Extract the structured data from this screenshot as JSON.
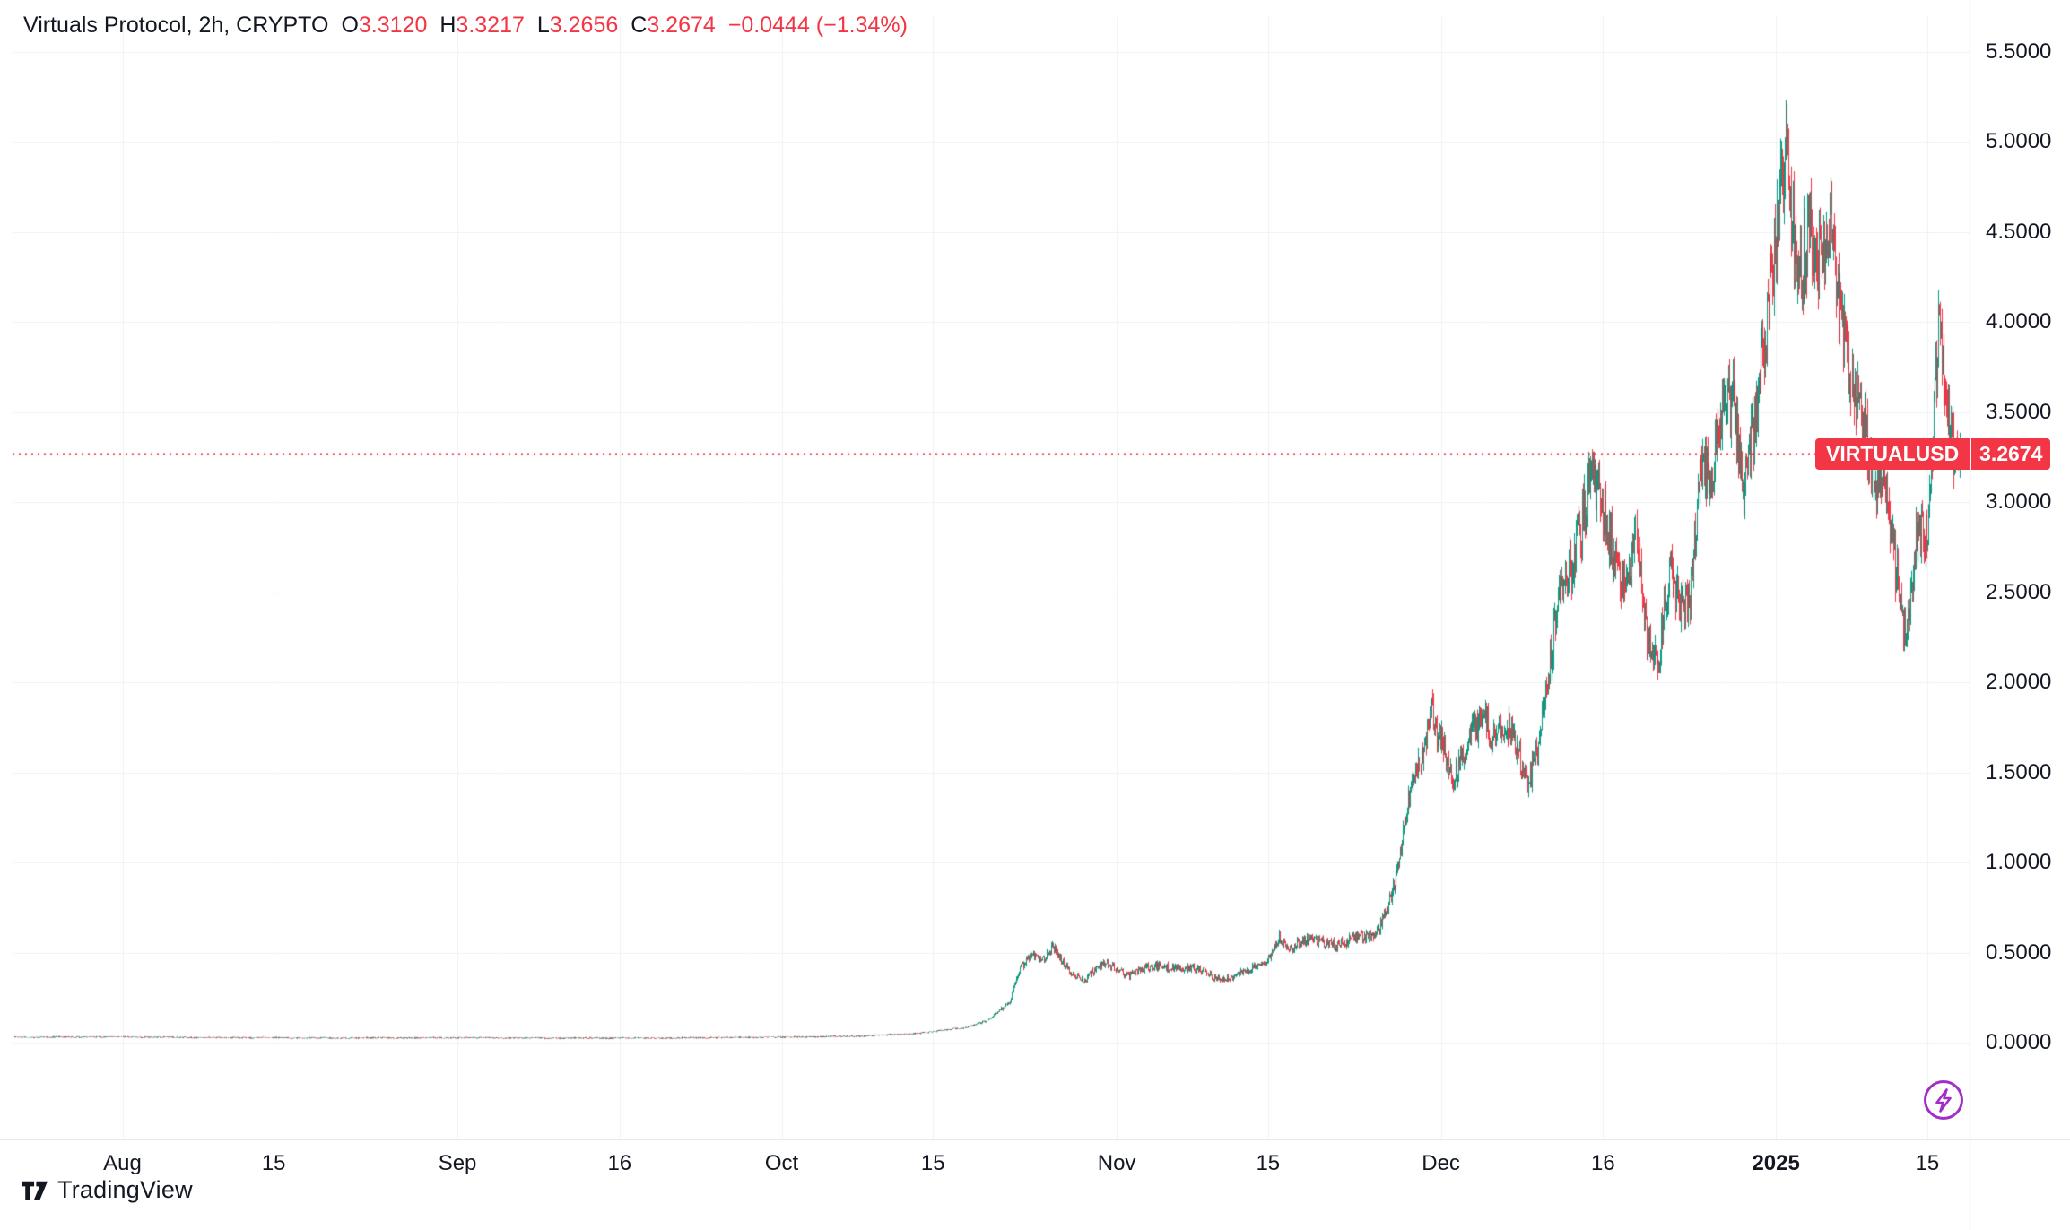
{
  "legend": {
    "title": "Virtuals Protocol, 2h, CRYPTO",
    "ohlc": {
      "o_label": "O",
      "o": "3.3120",
      "h_label": "H",
      "h": "3.3217",
      "l_label": "L",
      "l": "3.2656",
      "c_label": "C",
      "c": "3.2674",
      "change": "−0.0444 (−1.34%)"
    }
  },
  "price_line": {
    "symbol": "VIRTUALUSD",
    "price": "3.2674"
  },
  "footer": {
    "brand": "TradingView"
  },
  "colors": {
    "up": "#089981",
    "down": "#f23645",
    "accent_red": "#f23645",
    "purple": "#a22ec9",
    "text": "#131722",
    "grid": "#eef1f6",
    "axis_line": "#e0e3eb",
    "badge_text": "#ffffff"
  },
  "chart_data": {
    "type": "candlestick",
    "symbol": "VIRTUALUSD",
    "name": "Virtuals Protocol",
    "interval": "2h",
    "exchange": "CRYPTO",
    "open": 3.312,
    "high": 3.3217,
    "low": 3.2656,
    "close": 3.2674,
    "change": -0.0444,
    "change_pct": -1.34,
    "last_price": 3.2674,
    "ylim": [
      0,
      5.5
    ],
    "y_step": 0.5,
    "grid": true,
    "y_ticks": [
      "5.5000",
      "5.0000",
      "4.5000",
      "4.0000",
      "3.5000",
      "3.0000",
      "2.5000",
      "2.0000",
      "1.5000",
      "1.0000",
      "0.5000",
      "0.0000"
    ],
    "x_ticks": [
      {
        "label": "Aug",
        "date": "Aug 1"
      },
      {
        "label": "15",
        "date": "Aug 15"
      },
      {
        "label": "Sep",
        "date": "Sep 1"
      },
      {
        "label": "16",
        "date": "Sep 16"
      },
      {
        "label": "Oct",
        "date": "Oct 1"
      },
      {
        "label": "15",
        "date": "Oct 15"
      },
      {
        "label": "Nov",
        "date": "Nov 1"
      },
      {
        "label": "15",
        "date": "Nov 15"
      },
      {
        "label": "Dec",
        "date": "Dec 1"
      },
      {
        "label": "16",
        "date": "Dec 16"
      },
      {
        "label": "2025",
        "date": "Jan 1",
        "bold": true
      },
      {
        "label": "15",
        "date": "Jan 15"
      }
    ],
    "series_sampling": "approximate daily closes read from the chart",
    "series": [
      [
        "Jul 22",
        0.03
      ],
      [
        "Aug 1",
        0.032
      ],
      [
        "Aug 10",
        0.028
      ],
      [
        "Aug 20",
        0.026
      ],
      [
        "Sep 1",
        0.027
      ],
      [
        "Sep 10",
        0.025
      ],
      [
        "Sep 20",
        0.026
      ],
      [
        "Oct 1",
        0.03
      ],
      [
        "Oct 8",
        0.036
      ],
      [
        "Oct 12",
        0.046
      ],
      [
        "Oct 15",
        0.06
      ],
      [
        "Oct 18",
        0.085
      ],
      [
        "Oct 20",
        0.12
      ],
      [
        "Oct 22",
        0.22
      ],
      [
        "Oct 23",
        0.42
      ],
      [
        "Oct 24",
        0.5
      ],
      [
        "Oct 25",
        0.44
      ],
      [
        "Oct 26",
        0.52
      ],
      [
        "Oct 27",
        0.45
      ],
      [
        "Oct 28",
        0.38
      ],
      [
        "Oct 29",
        0.35
      ],
      [
        "Oct 31",
        0.44
      ],
      [
        "Nov 2",
        0.38
      ],
      [
        "Nov 4",
        0.41
      ],
      [
        "Nov 6",
        0.43
      ],
      [
        "Nov 8",
        0.41
      ],
      [
        "Nov 10",
        0.36
      ],
      [
        "Nov 12",
        0.38
      ],
      [
        "Nov 14",
        0.41
      ],
      [
        "Nov 15",
        0.47
      ],
      [
        "Nov 16",
        0.6
      ],
      [
        "Nov 17",
        0.52
      ],
      [
        "Nov 18",
        0.55
      ],
      [
        "Nov 20",
        0.57
      ],
      [
        "Nov 22",
        0.55
      ],
      [
        "Nov 24",
        0.58
      ],
      [
        "Nov 25",
        0.62
      ],
      [
        "Nov 26",
        0.75
      ],
      [
        "Nov 27",
        0.95
      ],
      [
        "Nov 28",
        1.3
      ],
      [
        "Nov 29",
        1.55
      ],
      [
        "Nov 30",
        1.9
      ],
      [
        "Dec 1",
        1.7
      ],
      [
        "Dec 2",
        1.4
      ],
      [
        "Dec 3",
        1.55
      ],
      [
        "Dec 4",
        1.75
      ],
      [
        "Dec 5",
        1.85
      ],
      [
        "Dec 6",
        1.7
      ],
      [
        "Dec 7",
        1.75
      ],
      [
        "Dec 8",
        1.6
      ],
      [
        "Dec 9",
        1.45
      ],
      [
        "Dec 10",
        1.7
      ],
      [
        "Dec 11",
        2.1
      ],
      [
        "Dec 12",
        2.45
      ],
      [
        "Dec 13",
        2.6
      ],
      [
        "Dec 14",
        2.9
      ],
      [
        "Dec 15",
        3.25
      ],
      [
        "Dec 16",
        2.95
      ],
      [
        "Dec 17",
        2.65
      ],
      [
        "Dec 18",
        2.45
      ],
      [
        "Dec 19",
        2.85
      ],
      [
        "Dec 20",
        2.3
      ],
      [
        "Dec 21",
        2.05
      ],
      [
        "Dec 22",
        2.55
      ],
      [
        "Dec 23",
        2.4
      ],
      [
        "Dec 24",
        2.5
      ],
      [
        "Dec 25",
        3.3
      ],
      [
        "Dec 26",
        3.1
      ],
      [
        "Dec 27",
        3.35
      ],
      [
        "Dec 28",
        3.55
      ],
      [
        "Dec 29",
        3.2
      ],
      [
        "Dec 30",
        3.5
      ],
      [
        "Dec 31",
        3.85
      ],
      [
        "Jan 1",
        4.35
      ],
      [
        "Jan 2",
        5.05
      ],
      [
        "Jan 3",
        4.35
      ],
      [
        "Jan 4",
        4.55
      ],
      [
        "Jan 5",
        4.2
      ],
      [
        "Jan 6",
        4.5
      ],
      [
        "Jan 7",
        4.1
      ],
      [
        "Jan 8",
        3.75
      ],
      [
        "Jan 9",
        3.45
      ],
      [
        "Jan 10",
        3.0
      ],
      [
        "Jan 11",
        3.1
      ],
      [
        "Jan 12",
        2.7
      ],
      [
        "Jan 13",
        2.3
      ],
      [
        "Jan 14",
        2.85
      ],
      [
        "Jan 15",
        2.7
      ],
      [
        "Jan 16",
        3.95
      ],
      [
        "Jan 17",
        3.5
      ],
      [
        "Jan 18",
        3.2674
      ]
    ]
  }
}
